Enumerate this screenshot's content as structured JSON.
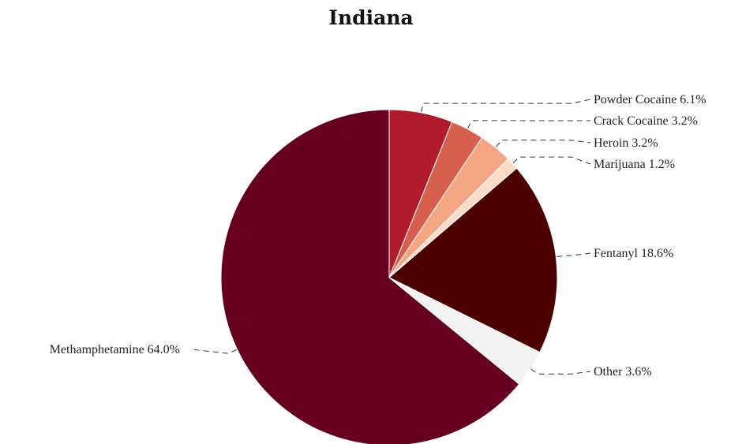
{
  "chart_data": {
    "type": "pie",
    "title": "Indiana",
    "start_angle_deg": 0,
    "direction": "clockwise",
    "slices": [
      {
        "label": "Powder Cocaine",
        "value": 6.1,
        "display": "Powder Cocaine 6.1%",
        "color": "#b01c2c"
      },
      {
        "label": "Crack Cocaine",
        "value": 3.2,
        "display": "Crack Cocaine 3.2%",
        "color": "#d6604d"
      },
      {
        "label": "Heroin",
        "value": 3.2,
        "display": "Heroin 3.2%",
        "color": "#f4a582"
      },
      {
        "label": "Marijuana",
        "value": 1.2,
        "display": "Marijuana 1.2%",
        "color": "#fddbc7"
      },
      {
        "label": "Fentanyl",
        "value": 18.6,
        "display": "Fentanyl 18.6%",
        "color": "#4d0000"
      },
      {
        "label": "Other",
        "value": 3.6,
        "display": "Other 3.6%",
        "color": "#f2f2f2"
      },
      {
        "label": "Methamphetamine",
        "value": 64.0,
        "display": "Methamphetamine 64.0%",
        "color": "#67001f"
      }
    ]
  }
}
